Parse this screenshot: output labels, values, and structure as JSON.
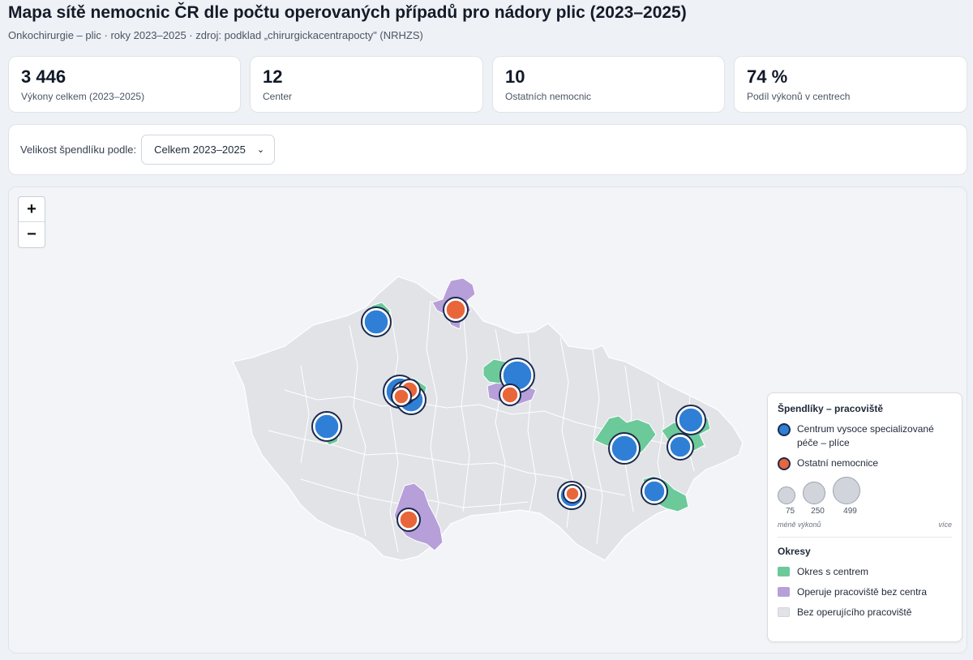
{
  "header": {
    "title": "Mapa sítě nemocnic ČR dle počtu operovaných případů pro nádory plic (2023–2025)",
    "subtitle": "Onkochirurgie – plic · roky 2023–2025 · zdroj: podklad „chirurgickacentrapocty\" (NRHZS)"
  },
  "kpis": [
    {
      "value": "3 446",
      "label": "Výkony celkem (2023–2025)"
    },
    {
      "value": "12",
      "label": "Center"
    },
    {
      "value": "10",
      "label": "Ostatních nemocnic"
    },
    {
      "value": "74 %",
      "label": "Podíl výkonů v centrech"
    }
  ],
  "controls": {
    "label": "Velikost špendlíku podle:",
    "selected": "Celkem 2023–2025"
  },
  "map": {
    "zoom_in": "+",
    "zoom_out": "−"
  },
  "legend": {
    "pins_title": "Špendlíky – pracoviště",
    "center_label": "Centrum vysoce specializované péče – plíce",
    "other_label": "Ostatní nemocnice",
    "size_values": [
      "75",
      "250",
      "499"
    ],
    "less": "méně výkonů",
    "more": "více",
    "districts_title": "Okresy",
    "district_center": "Okres s centrem",
    "district_other": "Operuje pracoviště bez centra",
    "district_none": "Bez operujícího pracoviště"
  },
  "colors": {
    "center": "#2f7fd6",
    "center_ring": "#1b2a4e",
    "other": "#e8663a",
    "district_center": "#6cc99a",
    "district_other": "#b79fd9",
    "district_none": "#e1e3e7"
  }
}
